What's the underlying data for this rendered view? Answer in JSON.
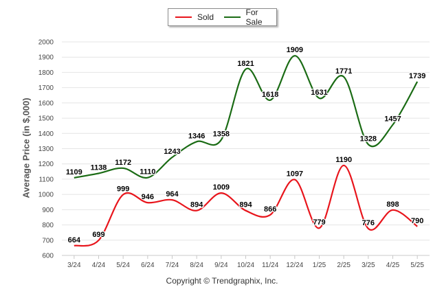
{
  "legend": {
    "sold_label": "Sold",
    "forsale_label": "For Sale"
  },
  "copyright": "Copyright © Trendgraphix, Inc.",
  "chart_data": {
    "type": "line",
    "categories": [
      "3/24",
      "4/24",
      "5/24",
      "6/24",
      "7/24",
      "8/24",
      "9/24",
      "10/24",
      "11/24",
      "12/24",
      "1/25",
      "2/25",
      "3/25",
      "4/25",
      "5/25"
    ],
    "ylabel": "Average Price (in $,000)",
    "ylim": [
      600,
      2000
    ],
    "yticks": [
      600,
      700,
      800,
      900,
      1000,
      1100,
      1200,
      1300,
      1400,
      1500,
      1600,
      1700,
      1800,
      1900,
      2000
    ],
    "grid": "horizontal",
    "legend_position": "top-center",
    "series": [
      {
        "name": "Sold",
        "color": "#e8141b",
        "values": [
          664,
          699,
          999,
          946,
          964,
          894,
          1009,
          894,
          866,
          1097,
          779,
          1190,
          776,
          898,
          790
        ]
      },
      {
        "name": "For Sale",
        "color": "#1a6b14",
        "values": [
          1109,
          1138,
          1172,
          1110,
          1243,
          1346,
          1358,
          1821,
          1618,
          1909,
          1631,
          1771,
          1328,
          1457,
          1739
        ]
      }
    ]
  }
}
